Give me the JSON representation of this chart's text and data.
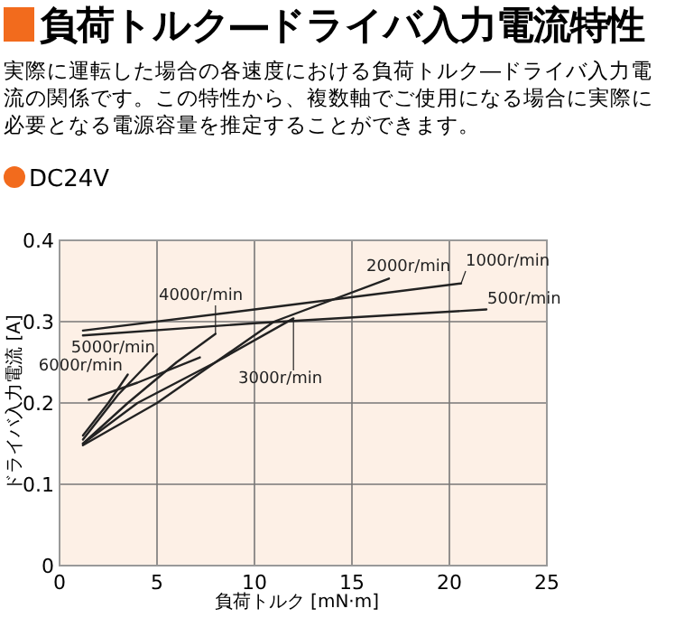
{
  "chart_data": {
    "type": "line",
    "title": "負荷トルク―ドライバ入力電流特性",
    "subtitle": "実際に運転した場合の各速度における負荷トルク―ドライバ入力電流の関係です。この特性から、複数軸でご使用になる場合に実際に必要となる電源容量を推定することができます。",
    "annotations": [
      "DC24V"
    ],
    "xlabel": "負荷トルク [mN·m]",
    "ylabel": "ドライバ入力電流 [A]",
    "xlim": [
      0,
      25
    ],
    "xticks": [
      0,
      5,
      10,
      15,
      20,
      25
    ],
    "ylim": [
      0,
      0.4
    ],
    "yticks": [
      0,
      0.1,
      0.2,
      0.3,
      0.4
    ],
    "grid": true,
    "series": [
      {
        "name": "500r/min",
        "color": "#222222",
        "x": [
          1.2,
          10,
          21.9
        ],
        "values": [
          0.283,
          0.298,
          0.315
        ]
      },
      {
        "name": "1000r/min",
        "color": "#222222",
        "x": [
          1.2,
          10,
          20.6
        ],
        "values": [
          0.289,
          0.315,
          0.347
        ]
      },
      {
        "name": "2000r/min",
        "color": "#222222",
        "x": [
          1.2,
          5,
          11,
          16.9
        ],
        "values": [
          0.148,
          0.2,
          0.3,
          0.353
        ]
      },
      {
        "name": "3000r/min",
        "color": "#222222",
        "x": [
          1.2,
          4,
          8,
          12
        ],
        "values": [
          0.15,
          0.2,
          0.25,
          0.304
        ]
      },
      {
        "name": "4000r/min",
        "color": "#222222",
        "x": [
          1.2,
          3.5,
          6,
          8
        ],
        "values": [
          0.15,
          0.2,
          0.25,
          0.285
        ]
      },
      {
        "name": "5000r/min",
        "color": "#222222",
        "x": [
          1.2,
          3,
          5
        ],
        "values": [
          0.155,
          0.21,
          0.26
        ]
      },
      {
        "name": "6000r/min",
        "color": "#222222",
        "x": [
          1.2,
          2.5,
          3.5
        ],
        "values": [
          0.16,
          0.2,
          0.235
        ]
      },
      {
        "color": "#222222",
        "x": [
          1.5,
          4,
          7.2
        ],
        "values": [
          0.204,
          0.225,
          0.256
        ]
      }
    ]
  }
}
